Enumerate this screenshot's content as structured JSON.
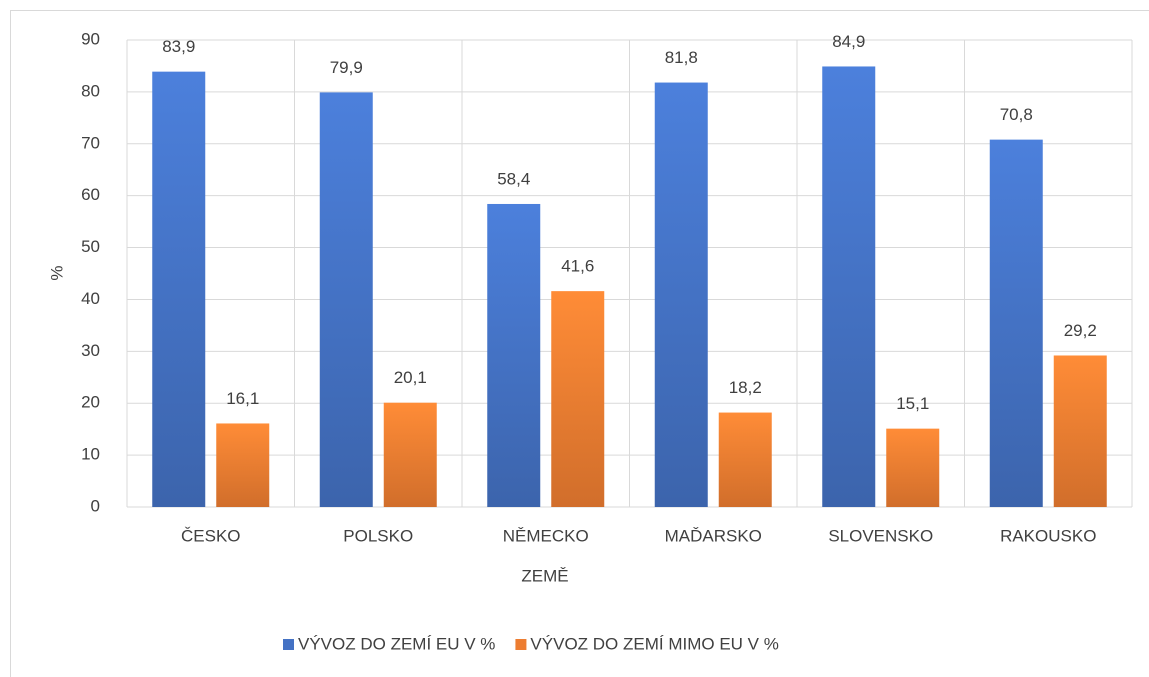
{
  "chart_data": {
    "type": "bar",
    "categories": [
      "ČESKO",
      "POLSKO",
      "NĚMECKO",
      "MAĎARSKO",
      "SLOVENSKO",
      "RAKOUSKO"
    ],
    "series": [
      {
        "name": "VÝVOZ DO ZEMÍ EU V %",
        "color": "#4472c4",
        "values": [
          83.9,
          79.9,
          58.4,
          81.8,
          84.9,
          70.8
        ],
        "value_labels": [
          "83,9",
          "79,9",
          "58,4",
          "81,8",
          "84,9",
          "70,8"
        ]
      },
      {
        "name": "VÝVOZ DO ZEMÍ MIMO EU V %",
        "color": "#ed7d31",
        "values": [
          16.1,
          20.1,
          41.6,
          18.2,
          15.1,
          29.2
        ],
        "value_labels": [
          "16,1",
          "20,1",
          "41,6",
          "18,2",
          "15,1",
          "29,2"
        ]
      }
    ],
    "x_label": "ZEMĚ",
    "y_label": "%",
    "ylim": [
      0,
      90
    ],
    "yticks": [
      0,
      10,
      20,
      30,
      40,
      50,
      60,
      70,
      80,
      90
    ],
    "grid": true,
    "legend": "bottom"
  }
}
